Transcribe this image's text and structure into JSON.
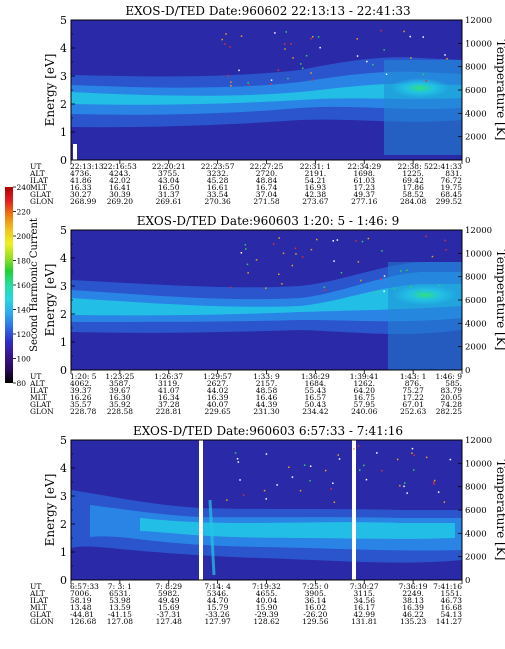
{
  "colorbar": {
    "label": "Second Harmonic Current",
    "ticks": [
      "80",
      "100",
      "120",
      "140",
      "160",
      "180",
      "200",
      "220",
      "240"
    ],
    "colors": [
      "#000000",
      "#2a0b5a",
      "#3a1590",
      "#2f2fc8",
      "#2f6fe8",
      "#2fa9f0",
      "#26d7e0",
      "#22e0a0",
      "#20d030",
      "#9ee020",
      "#f0f020",
      "#f0c020",
      "#f07a10",
      "#e02020",
      "#b00000"
    ]
  },
  "chart_data": [
    {
      "type": "heatmap",
      "title": "EXOS-D/TED   Date:960602  22:13:13 - 22:41:33",
      "ylabel": "Energy [eV]",
      "ylabel_right": "Temperature [K]",
      "ylim": [
        0,
        5
      ],
      "yticks": [
        "0",
        "1",
        "2",
        "3",
        "4",
        "5"
      ],
      "ylim_right": [
        0,
        12000
      ],
      "yticks_right": [
        "0",
        "2000",
        "4000",
        "6000",
        "8000",
        "10000",
        "12000"
      ],
      "band_center_eV": [
        2.1,
        2.1,
        2.2,
        2.3,
        2.5,
        2.7,
        2.6,
        2.5
      ],
      "orbit_table": {
        "labels": [
          "UT",
          "ALT",
          "ILAT",
          "MLT",
          "GLAT",
          "GLON"
        ],
        "columns": [
          [
            "22:13:13",
            "4736.",
            "41.86",
            "16.33",
            "30.27",
            "268.99"
          ],
          [
            "22:16:53",
            "4243.",
            "42.02",
            "16.41",
            "30.39",
            "269.20"
          ],
          [
            "22:20:21",
            "3755.",
            "43.04",
            "16.50",
            "31.37",
            "269.61"
          ],
          [
            "22:23:57",
            "3232.",
            "45.28",
            "16.61",
            "33.54",
            "270.36"
          ],
          [
            "22:27:25",
            "2720.",
            "48.84",
            "16.74",
            "37.04",
            "271.58"
          ],
          [
            "22:31: 1",
            "2191.",
            "54.21",
            "16.93",
            "42.38",
            "273.67"
          ],
          [
            "22:34:29",
            "1698.",
            "61.03",
            "17.23",
            "49.37",
            "277.16"
          ],
          [
            "22:38: 5",
            "1225.",
            "69.42",
            "17.86",
            "58.52",
            "284.08"
          ],
          [
            "22:41:33",
            "831.",
            "76.72",
            "19.75",
            "68.45",
            "299.52"
          ]
        ]
      }
    },
    {
      "type": "heatmap",
      "title": "EXOS-D/TED   Date:960603  1:20: 5 - 1:46: 9",
      "ylabel": "Energy [eV]",
      "ylabel_right": "Temperature [K]",
      "ylim": [
        0,
        5
      ],
      "yticks": [
        "0",
        "1",
        "2",
        "3",
        "4",
        "5"
      ],
      "ylim_right": [
        0,
        12000
      ],
      "yticks_right": [
        "0",
        "2000",
        "4000",
        "6000",
        "8000",
        "10000",
        "12000"
      ],
      "band_center_eV": [
        2.1,
        2.0,
        1.9,
        1.9,
        2.0,
        2.1,
        2.3,
        2.5
      ],
      "orbit_table": {
        "labels": [
          "UT",
          "ALT",
          "ILAT",
          "MLT",
          "GLAT",
          "GLON"
        ],
        "columns": [
          [
            "1:20: 5",
            "4062.",
            "39.37",
            "16.26",
            "35.57",
            "228.78"
          ],
          [
            "1:23:25",
            "3587.",
            "39.67",
            "16.30",
            "35.92",
            "228.58"
          ],
          [
            "1:26:37",
            "3119.",
            "41.07",
            "16.34",
            "37.28",
            "228.81"
          ],
          [
            "1:29:57",
            "2627.",
            "44.02",
            "16.39",
            "40.07",
            "229.65"
          ],
          [
            "1:33: 9",
            "2157.",
            "48.58",
            "16.46",
            "44.39",
            "231.30"
          ],
          [
            "1:36:29",
            "1684.",
            "55.43",
            "16.57",
            "50.43",
            "234.42"
          ],
          [
            "1:39:41",
            "1262.",
            "64.20",
            "16.75",
            "57.95",
            "240.06"
          ],
          [
            "1:43: 1",
            "876.",
            "75.27",
            "17.22",
            "67.01",
            "252.63"
          ],
          [
            "1:46: 9",
            "585.",
            "83.79",
            "20.05",
            "74.28",
            "282.25"
          ]
        ]
      }
    },
    {
      "type": "heatmap",
      "title": "EXOS-D/TED   Date:960603  6:57:33 - 7:41:16",
      "ylabel": "Energy [eV]",
      "ylabel_right": "Temperature [K]",
      "ylim": [
        0,
        5
      ],
      "yticks": [
        "0",
        "1",
        "2",
        "3",
        "4",
        "5"
      ],
      "ylim_right": [
        0,
        12000
      ],
      "yticks_right": [
        "0",
        "2000",
        "4000",
        "6000",
        "8000",
        "10000",
        "12000"
      ],
      "band_center_eV": [
        2.6,
        2.3,
        2.1,
        2.0,
        2.0,
        2.0,
        2.1,
        2.0
      ],
      "orbit_table": {
        "labels": [
          "UT",
          "ALT",
          "ILAT",
          "MLT",
          "GLAT",
          "GLON"
        ],
        "columns": [
          [
            "6:57:33",
            "7006.",
            "58.19",
            "13.48",
            "-44.81",
            "126.68"
          ],
          [
            "7: 3: 1",
            "6531.",
            "53.98",
            "13.59",
            "-41.15",
            "127.08"
          ],
          [
            "7: 8:29",
            "5982.",
            "49.49",
            "15.69",
            "-37.31",
            "127.48"
          ],
          [
            "7:14: 4",
            "5346.",
            "44.70",
            "15.79",
            "-33.26",
            "127.97"
          ],
          [
            "7:19:32",
            "4655.",
            "40.04",
            "15.90",
            "-29.39",
            "128.62"
          ],
          [
            "7:25: 0",
            "3905.",
            "36.14",
            "16.02",
            "-26.20",
            "129.56"
          ],
          [
            "7:30:27",
            "3115.",
            "34.56",
            "16.17",
            "42.99",
            "131.81"
          ],
          [
            "7:36:19",
            "2249.",
            "38.13",
            "16.39",
            "46.22",
            "135.23"
          ],
          [
            "7:41:16",
            "1551.",
            "46.73",
            "16.68",
            "54.13",
            "141.27"
          ]
        ]
      }
    }
  ]
}
